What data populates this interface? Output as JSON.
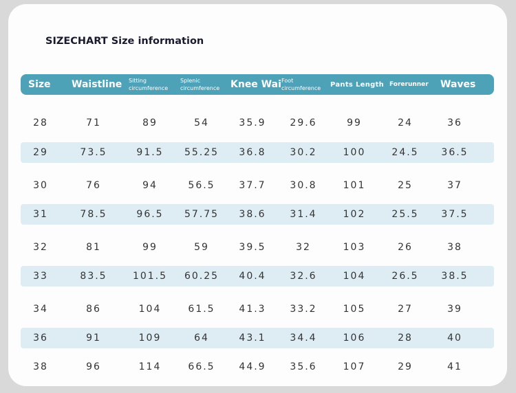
{
  "title": "SIZECHART Size information",
  "colors": {
    "header_bg": "#4ea2b8",
    "stripe_bg": "#deedf3",
    "card_bg": "#fdfdfd",
    "page_bg": "#d9d9d9"
  },
  "headers": [
    {
      "line1": "Size",
      "line2": ""
    },
    {
      "line1": "Waistline",
      "line2": ""
    },
    {
      "line1": "Sitting",
      "line2": "circumference"
    },
    {
      "line1": "Splenic",
      "line2": "circumference"
    },
    {
      "line1": "Knee Wai",
      "line2": ""
    },
    {
      "line1": "Foot",
      "line2": "circumference"
    },
    {
      "line1": "Pants Length",
      "line2": ""
    },
    {
      "line1": "Forerunner",
      "line2": ""
    },
    {
      "line1": "Waves",
      "line2": ""
    }
  ],
  "rows": [
    [
      "28",
      "71",
      "89",
      "54",
      "35.9",
      "29.6",
      "99",
      "24",
      "36"
    ],
    [
      "29",
      "73.5",
      "91.5",
      "55.25",
      "36.8",
      "30.2",
      "100",
      "24.5",
      "36.5"
    ],
    [
      "30",
      "76",
      "94",
      "56.5",
      "37.7",
      "30.8",
      "101",
      "25",
      "37"
    ],
    [
      "31",
      "78.5",
      "96.5",
      "57.75",
      "38.6",
      "31.4",
      "102",
      "25.5",
      "37.5"
    ],
    [
      "32",
      "81",
      "99",
      "59",
      "39.5",
      "32",
      "103",
      "26",
      "38"
    ],
    [
      "33",
      "83.5",
      "101.5",
      "60.25",
      "40.4",
      "32.6",
      "104",
      "26.5",
      "38.5"
    ],
    [
      "34",
      "86",
      "104",
      "61.5",
      "41.3",
      "33.2",
      "105",
      "27",
      "39"
    ],
    [
      "36",
      "91",
      "109",
      "64",
      "43.1",
      "34.4",
      "106",
      "28",
      "40"
    ],
    [
      "38",
      "96",
      "114",
      "66.5",
      "44.9",
      "35.6",
      "107",
      "29",
      "41"
    ]
  ]
}
